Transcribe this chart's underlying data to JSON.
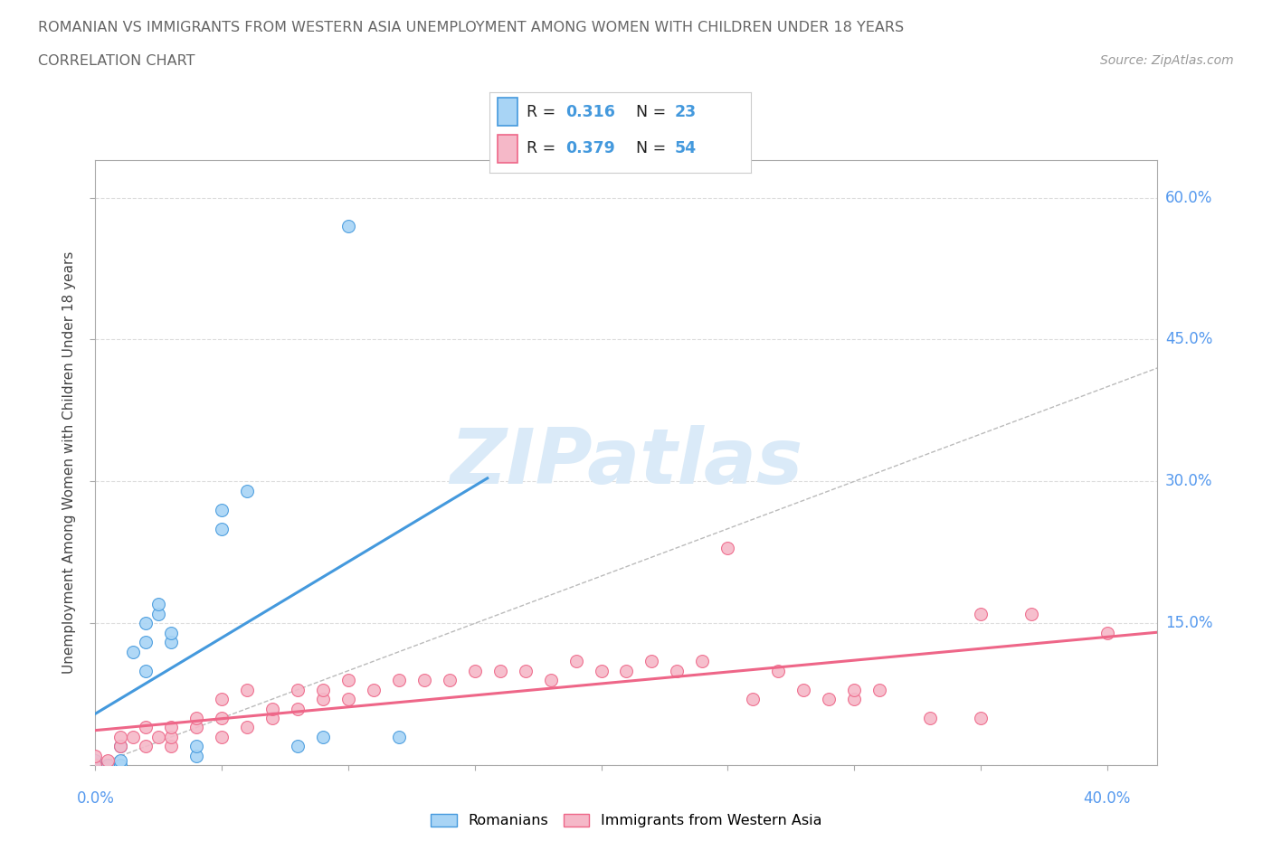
{
  "title_line1": "ROMANIAN VS IMMIGRANTS FROM WESTERN ASIA UNEMPLOYMENT AMONG WOMEN WITH CHILDREN UNDER 18 YEARS",
  "title_line2": "CORRELATION CHART",
  "source": "Source: ZipAtlas.com",
  "ylabel": "Unemployment Among Women with Children Under 18 years",
  "xlim": [
    0.0,
    0.42
  ],
  "ylim": [
    0.0,
    0.64
  ],
  "xtick_positions": [
    0.0,
    0.05,
    0.1,
    0.15,
    0.2,
    0.25,
    0.3,
    0.35,
    0.4
  ],
  "ytick_positions": [
    0.0,
    0.15,
    0.3,
    0.45,
    0.6
  ],
  "ytick_labels": [
    "",
    "15.0%",
    "30.0%",
    "45.0%",
    "60.0%"
  ],
  "romanian_R": "0.316",
  "romanian_N": "23",
  "immigrant_R": "0.379",
  "immigrant_N": "54",
  "romanian_color": "#a8d4f5",
  "immigrant_color": "#f5b8c8",
  "trend_color_romanian": "#4499DD",
  "trend_color_immigrant": "#EE6688",
  "diagonal_color": "#BBBBBB",
  "watermark_text": "ZIPatlas",
  "watermark_color": "#daeaf8",
  "grid_color": "#DDDDDD",
  "roman_x": [
    0.0,
    0.0,
    0.005,
    0.01,
    0.01,
    0.01,
    0.015,
    0.02,
    0.02,
    0.02,
    0.025,
    0.025,
    0.03,
    0.03,
    0.04,
    0.04,
    0.05,
    0.05,
    0.06,
    0.08,
    0.09,
    0.1,
    0.12
  ],
  "roman_y": [
    0.0,
    0.005,
    0.0,
    0.0,
    0.005,
    0.02,
    0.12,
    0.1,
    0.13,
    0.15,
    0.16,
    0.17,
    0.13,
    0.14,
    0.01,
    0.02,
    0.25,
    0.27,
    0.29,
    0.02,
    0.03,
    0.57,
    0.03
  ],
  "imm_x": [
    0.0,
    0.0,
    0.005,
    0.01,
    0.01,
    0.015,
    0.02,
    0.02,
    0.025,
    0.03,
    0.03,
    0.03,
    0.04,
    0.04,
    0.05,
    0.05,
    0.05,
    0.06,
    0.06,
    0.07,
    0.07,
    0.08,
    0.08,
    0.09,
    0.09,
    0.1,
    0.1,
    0.11,
    0.12,
    0.13,
    0.14,
    0.15,
    0.16,
    0.17,
    0.18,
    0.19,
    0.2,
    0.21,
    0.22,
    0.23,
    0.24,
    0.25,
    0.26,
    0.27,
    0.28,
    0.29,
    0.3,
    0.3,
    0.31,
    0.33,
    0.35,
    0.35,
    0.37,
    0.4
  ],
  "imm_y": [
    0.0,
    0.01,
    0.005,
    0.02,
    0.03,
    0.03,
    0.02,
    0.04,
    0.03,
    0.02,
    0.03,
    0.04,
    0.04,
    0.05,
    0.03,
    0.05,
    0.07,
    0.04,
    0.08,
    0.05,
    0.06,
    0.06,
    0.08,
    0.07,
    0.08,
    0.07,
    0.09,
    0.08,
    0.09,
    0.09,
    0.09,
    0.1,
    0.1,
    0.1,
    0.09,
    0.11,
    0.1,
    0.1,
    0.11,
    0.1,
    0.11,
    0.23,
    0.07,
    0.1,
    0.08,
    0.07,
    0.07,
    0.08,
    0.08,
    0.05,
    0.05,
    0.16,
    0.16,
    0.14
  ],
  "legend_box_color": "white",
  "legend_border_color": "#CCCCCC"
}
